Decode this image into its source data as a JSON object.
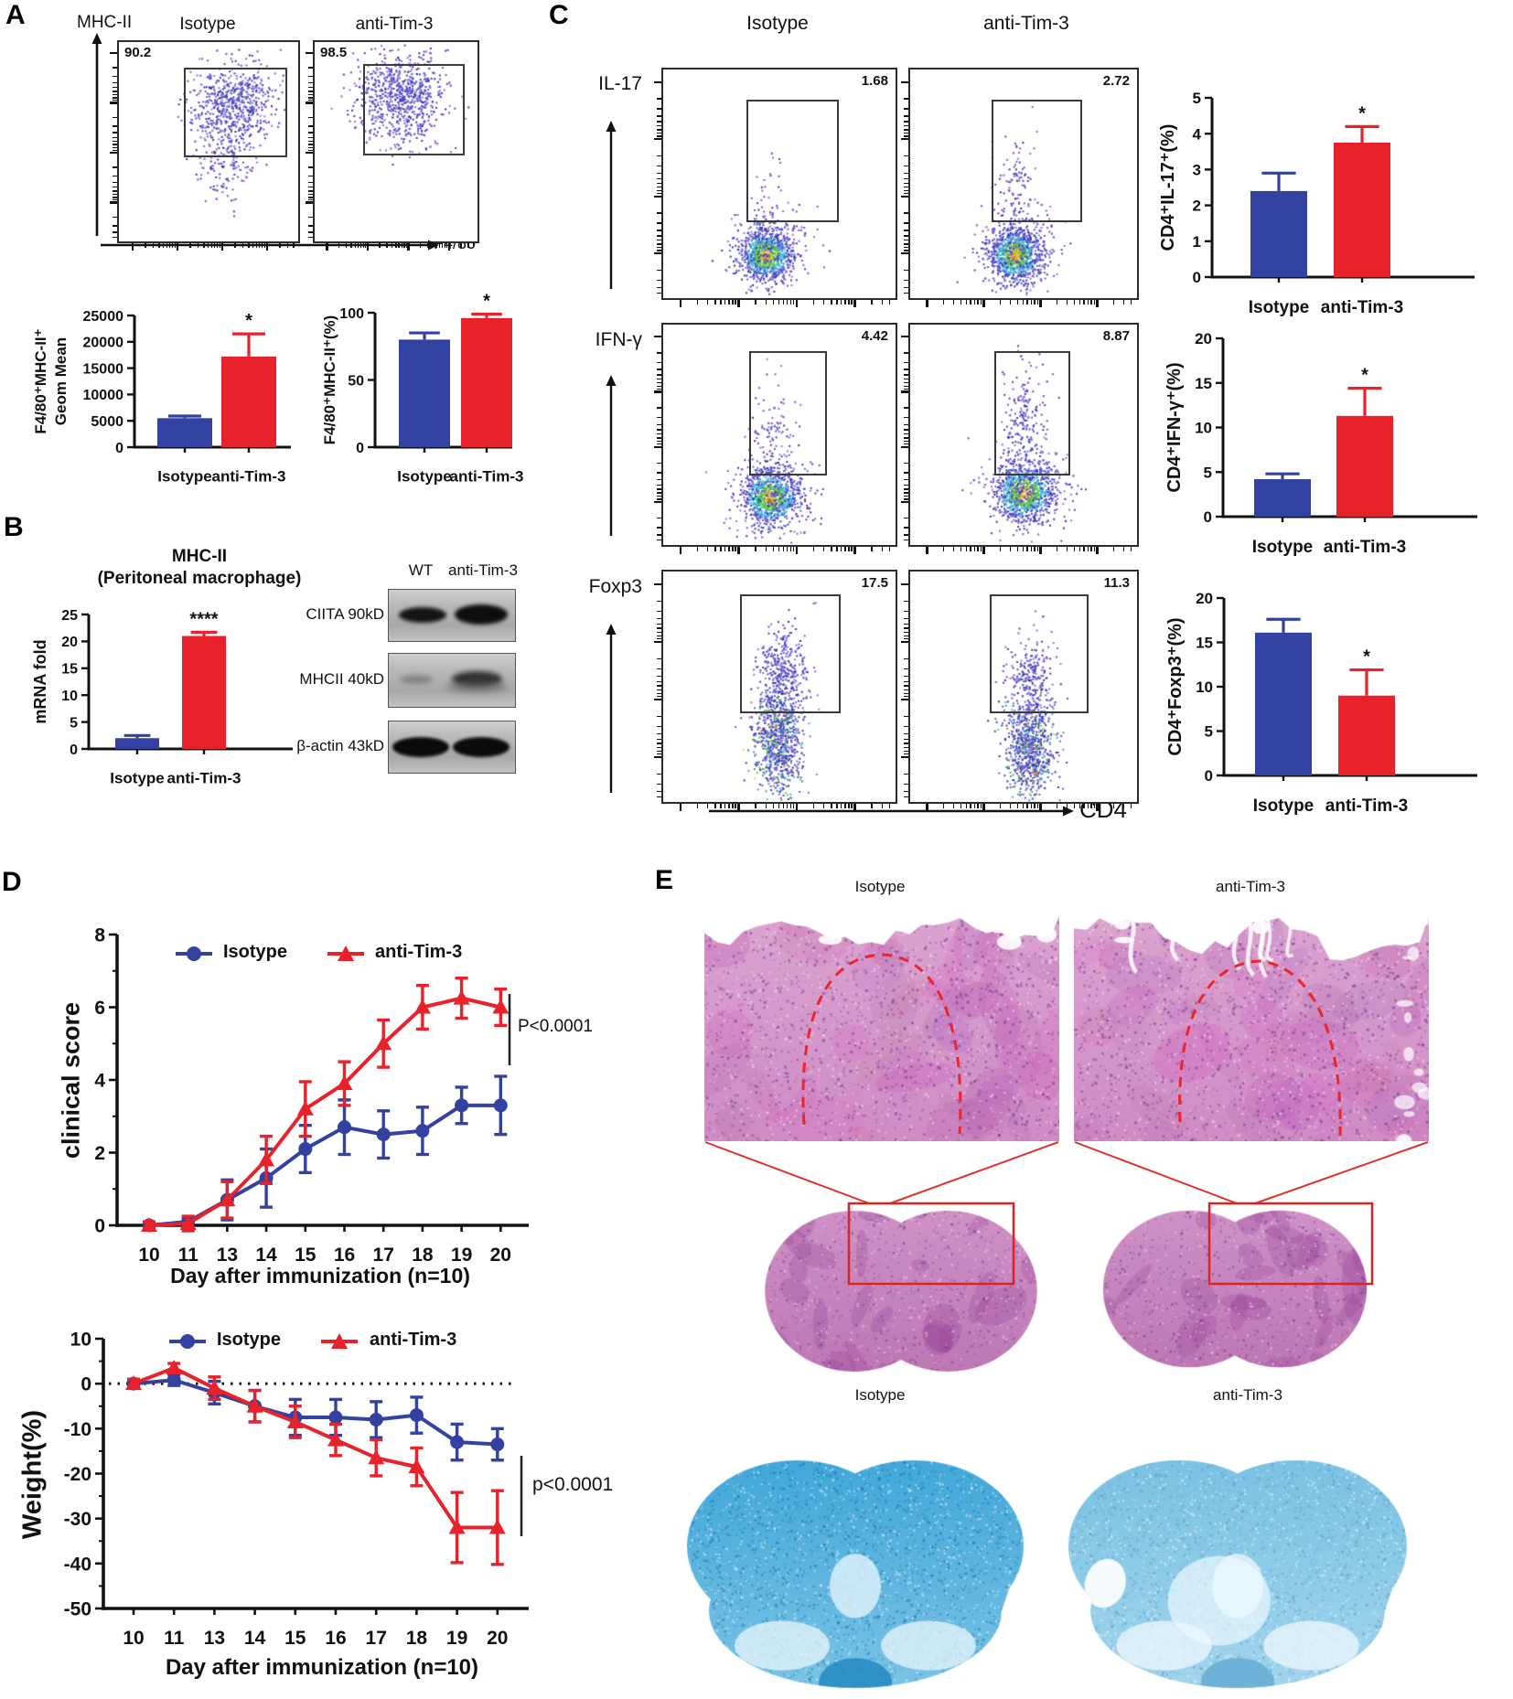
{
  "panels": {
    "a": "A",
    "b": "B",
    "c": "C",
    "d": "D",
    "e": "E"
  },
  "colors": {
    "blue": "#3341a0",
    "red": "#e8222b",
    "gate_red": "#e03030",
    "axis": "#111111"
  },
  "panelA": {
    "y_marker": "MHC-II",
    "x_marker": "F4/80",
    "col_headers": [
      "Isotype",
      "anti-Tim-3"
    ],
    "plots": [
      {
        "group": "Isotype",
        "value": "90.2"
      },
      {
        "group": "anti-Tim-3",
        "value": "98.5"
      }
    ]
  },
  "panelB": {
    "blot": {
      "lanes": [
        "WT",
        "anti-Tim-3"
      ],
      "rows": [
        "CIITA 90kD",
        "MHCII 40kD",
        "β-actin 43kD"
      ]
    }
  },
  "panelC": {
    "col_headers": [
      "Isotype",
      "anti-Tim-3"
    ],
    "x_marker": "CD4",
    "rows": [
      {
        "marker": "IL-17",
        "values": [
          "1.68",
          "2.72"
        ]
      },
      {
        "marker": "IFN-γ",
        "values": [
          "4.42",
          "8.87"
        ]
      },
      {
        "marker": "Foxp3",
        "values": [
          "17.5",
          "11.3"
        ]
      }
    ]
  },
  "panelE": {
    "top_labels": [
      "Isotype",
      "anti-Tim-3"
    ],
    "mid_labels": [
      "Isotype",
      "anti-Tim-3"
    ]
  },
  "chart_data": [
    {
      "id": "a_geom_mean",
      "type": "bar",
      "categories": [
        "Isotype",
        "anti-Tim-3"
      ],
      "values": [
        5500,
        17200
      ],
      "errors": [
        400,
        4300
      ],
      "ylabel_lines": [
        "F4/80⁺MHC-II⁺",
        "Geom Mean"
      ],
      "ylim": [
        0,
        25000
      ],
      "yticks": [
        0,
        5000,
        10000,
        15000,
        20000,
        25000
      ],
      "sig": {
        "bar": 1,
        "text": "*"
      },
      "bar_colors": [
        "#3341a0",
        "#e8222b"
      ]
    },
    {
      "id": "a_pct",
      "type": "bar",
      "categories": [
        "Isotype",
        "anti-Tim-3"
      ],
      "values": [
        80,
        96
      ],
      "errors": [
        5,
        3
      ],
      "ylabel_lines": [
        "F4/80⁺MHC-II⁺(%)"
      ],
      "ylim": [
        0,
        100
      ],
      "yticks": [
        0,
        50,
        100
      ],
      "sig": {
        "bar": 1,
        "text": "*"
      },
      "bar_colors": [
        "#3341a0",
        "#e8222b"
      ]
    },
    {
      "id": "b_mrna",
      "type": "bar",
      "title": "MHC-II",
      "subtitle": "(Peritoneal macrophage)",
      "categories": [
        "Isotype",
        "anti-Tim-3"
      ],
      "values": [
        2,
        21
      ],
      "errors": [
        0.5,
        0.7
      ],
      "ylabel_lines": [
        "mRNA fold"
      ],
      "ylim": [
        0,
        25
      ],
      "yticks": [
        0,
        5,
        10,
        15,
        20,
        25
      ],
      "sig": {
        "bar": 1,
        "text": "****"
      },
      "bar_colors": [
        "#3341a0",
        "#e8222b"
      ]
    },
    {
      "id": "c_il17",
      "type": "bar",
      "categories": [
        "Isotype",
        "anti-Tim-3"
      ],
      "values": [
        2.4,
        3.75
      ],
      "errors": [
        0.5,
        0.45
      ],
      "ylabel_lines": [
        "CD4⁺IL-17⁺(%)"
      ],
      "ylim": [
        0,
        5
      ],
      "yticks": [
        0,
        1,
        2,
        3,
        4,
        5
      ],
      "sig": {
        "bar": 1,
        "text": "*"
      },
      "bar_colors": [
        "#3341a0",
        "#e8222b"
      ]
    },
    {
      "id": "c_ifng",
      "type": "bar",
      "categories": [
        "Isotype",
        "anti-Tim-3"
      ],
      "values": [
        4.2,
        11.3
      ],
      "errors": [
        0.6,
        3.1
      ],
      "ylabel_lines": [
        "CD4⁺IFN-γ⁺(%)"
      ],
      "ylim": [
        0,
        20
      ],
      "yticks": [
        0,
        5,
        10,
        15,
        20
      ],
      "sig": {
        "bar": 1,
        "text": "*"
      },
      "bar_colors": [
        "#3341a0",
        "#e8222b"
      ]
    },
    {
      "id": "c_foxp3",
      "type": "bar",
      "categories": [
        "Isotype",
        "anti-Tim-3"
      ],
      "values": [
        16.1,
        9.0
      ],
      "errors": [
        1.5,
        2.9
      ],
      "ylabel_lines": [
        "CD4⁺Foxp3⁺(%)"
      ],
      "ylim": [
        0,
        20
      ],
      "yticks": [
        0,
        5,
        10,
        15,
        20
      ],
      "sig": {
        "bar": 1,
        "text": "*"
      },
      "bar_colors": [
        "#3341a0",
        "#e8222b"
      ]
    },
    {
      "id": "d_clinical",
      "type": "line",
      "x_categories": [
        "10",
        "11",
        "13",
        "14",
        "15",
        "16",
        "17",
        "18",
        "19",
        "20"
      ],
      "series": [
        {
          "name": "Isotype",
          "color": "#3341a0",
          "marker": "circle",
          "values": [
            0,
            0.1,
            0.7,
            1.3,
            2.1,
            2.7,
            2.5,
            2.6,
            3.3,
            3.3
          ],
          "errors": [
            0.05,
            0.1,
            0.55,
            0.8,
            0.65,
            0.75,
            0.65,
            0.65,
            0.5,
            0.8
          ]
        },
        {
          "name": "anti-Tim-3",
          "color": "#e8222b",
          "marker": "triangle",
          "values": [
            0,
            0.05,
            0.7,
            1.8,
            3.2,
            3.9,
            5.0,
            6.0,
            6.25,
            6.0
          ],
          "errors": [
            0.1,
            0.2,
            0.5,
            0.65,
            0.75,
            0.6,
            0.65,
            0.6,
            0.55,
            0.5
          ]
        }
      ],
      "ylabel": "clinical score",
      "xlabel": "Day after immunization (n=10)",
      "ylim": [
        0,
        8
      ],
      "yticks": [
        0,
        2,
        4,
        6,
        8
      ],
      "annotation": "P<0.0001"
    },
    {
      "id": "d_weight",
      "type": "line",
      "x_categories": [
        "10",
        "11",
        "13",
        "14",
        "15",
        "16",
        "17",
        "18",
        "19",
        "20"
      ],
      "series": [
        {
          "name": "Isotype",
          "color": "#3341a0",
          "marker": "circle",
          "values": [
            0,
            0.8,
            -2,
            -5,
            -7.5,
            -7.5,
            -8,
            -7,
            -13,
            -13.5
          ],
          "errors": [
            0.8,
            1.2,
            2.5,
            3.5,
            4,
            4,
            4,
            4,
            4,
            3.5
          ]
        },
        {
          "name": "anti-Tim-3",
          "color": "#e8222b",
          "marker": "triangle",
          "values": [
            0,
            3.5,
            -1,
            -5,
            -8.5,
            -12.5,
            -16.5,
            -18.5,
            -32,
            -32
          ],
          "errors": [
            1,
            1,
            2.5,
            3.5,
            3.5,
            3.5,
            4,
            4.2,
            7.8,
            8.2
          ]
        }
      ],
      "ylabel": "Weight(%)",
      "xlabel": "Day after immunization (n=10)",
      "ylim": [
        -50,
        10
      ],
      "yticks": [
        10,
        0,
        -10,
        -20,
        -30,
        -40,
        -50
      ],
      "zero_line": true,
      "annotation": "p<0.0001"
    }
  ]
}
